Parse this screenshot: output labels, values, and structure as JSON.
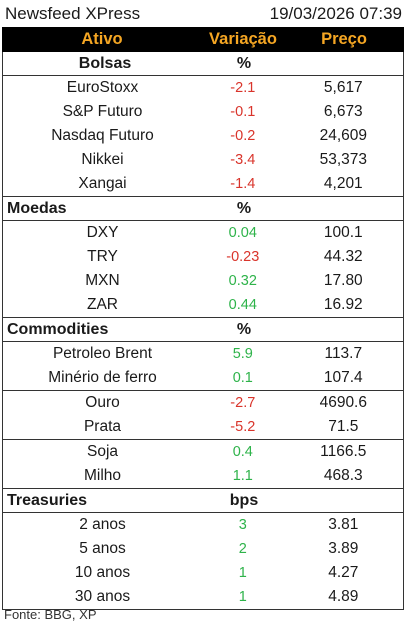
{
  "header": {
    "title": "Newsfeed XPress",
    "datetime": "19/03/2026 07:39"
  },
  "columns": {
    "asset": "Ativo",
    "change": "Variação",
    "price": "Preço"
  },
  "sections": [
    {
      "title": "Bolsas",
      "unit": "%",
      "centered": true,
      "rows": [
        {
          "name": "EuroStoxx",
          "change": "-2.1",
          "price": "5,617",
          "dir": "neg"
        },
        {
          "name": "S&P Futuro",
          "change": "-0.1",
          "price": "6,673",
          "dir": "neg"
        },
        {
          "name": "Nasdaq Futuro",
          "change": "-0.2",
          "price": "24,609",
          "dir": "neg"
        },
        {
          "name": "Nikkei",
          "change": "-3.4",
          "price": "53,373",
          "dir": "neg"
        },
        {
          "name": "Xangai",
          "change": "-1.4",
          "price": "4,201",
          "dir": "neg"
        }
      ]
    },
    {
      "title": "Moedas",
      "unit": "%",
      "centered": false,
      "rows": [
        {
          "name": "DXY",
          "change": "0.04",
          "price": "100.1",
          "dir": "pos"
        },
        {
          "name": "TRY",
          "change": "-0.23",
          "price": "44.32",
          "dir": "neg"
        },
        {
          "name": "MXN",
          "change": "0.32",
          "price": "17.80",
          "dir": "pos"
        },
        {
          "name": "ZAR",
          "change": "0.44",
          "price": "16.92",
          "dir": "pos"
        }
      ]
    },
    {
      "title": "Commodities",
      "unit": "%",
      "centered": false,
      "rows": [
        {
          "name": "Petroleo Brent",
          "change": "5.9",
          "price": "113.7",
          "dir": "pos"
        },
        {
          "name": "Minério de ferro",
          "change": "0.1",
          "price": "107.4",
          "dir": "pos"
        },
        {
          "name": "Ouro",
          "change": "-2.7",
          "price": "4690.6",
          "dir": "neg",
          "sep": true
        },
        {
          "name": "Prata",
          "change": "-5.2",
          "price": "71.5",
          "dir": "neg"
        },
        {
          "name": "Soja",
          "change": "0.4",
          "price": "1166.5",
          "dir": "pos",
          "sep": true
        },
        {
          "name": "Milho",
          "change": "1.1",
          "price": "468.3",
          "dir": "pos"
        }
      ]
    },
    {
      "title": "Treasuries",
      "unit": "bps",
      "centered": false,
      "rows": [
        {
          "name": "2 anos",
          "change": "3",
          "price": "3.81",
          "dir": "pos"
        },
        {
          "name": "5 anos",
          "change": "2",
          "price": "3.89",
          "dir": "pos"
        },
        {
          "name": "10 anos",
          "change": "1",
          "price": "4.27",
          "dir": "pos"
        },
        {
          "name": "30 anos",
          "change": "1",
          "price": "4.89",
          "dir": "pos"
        }
      ]
    }
  ],
  "footer": "Fonte: BBG, XP",
  "colors": {
    "negative": "#d9342b",
    "positive": "#2eb34a",
    "header_bg": "#000000",
    "header_text": "#f5a623"
  }
}
